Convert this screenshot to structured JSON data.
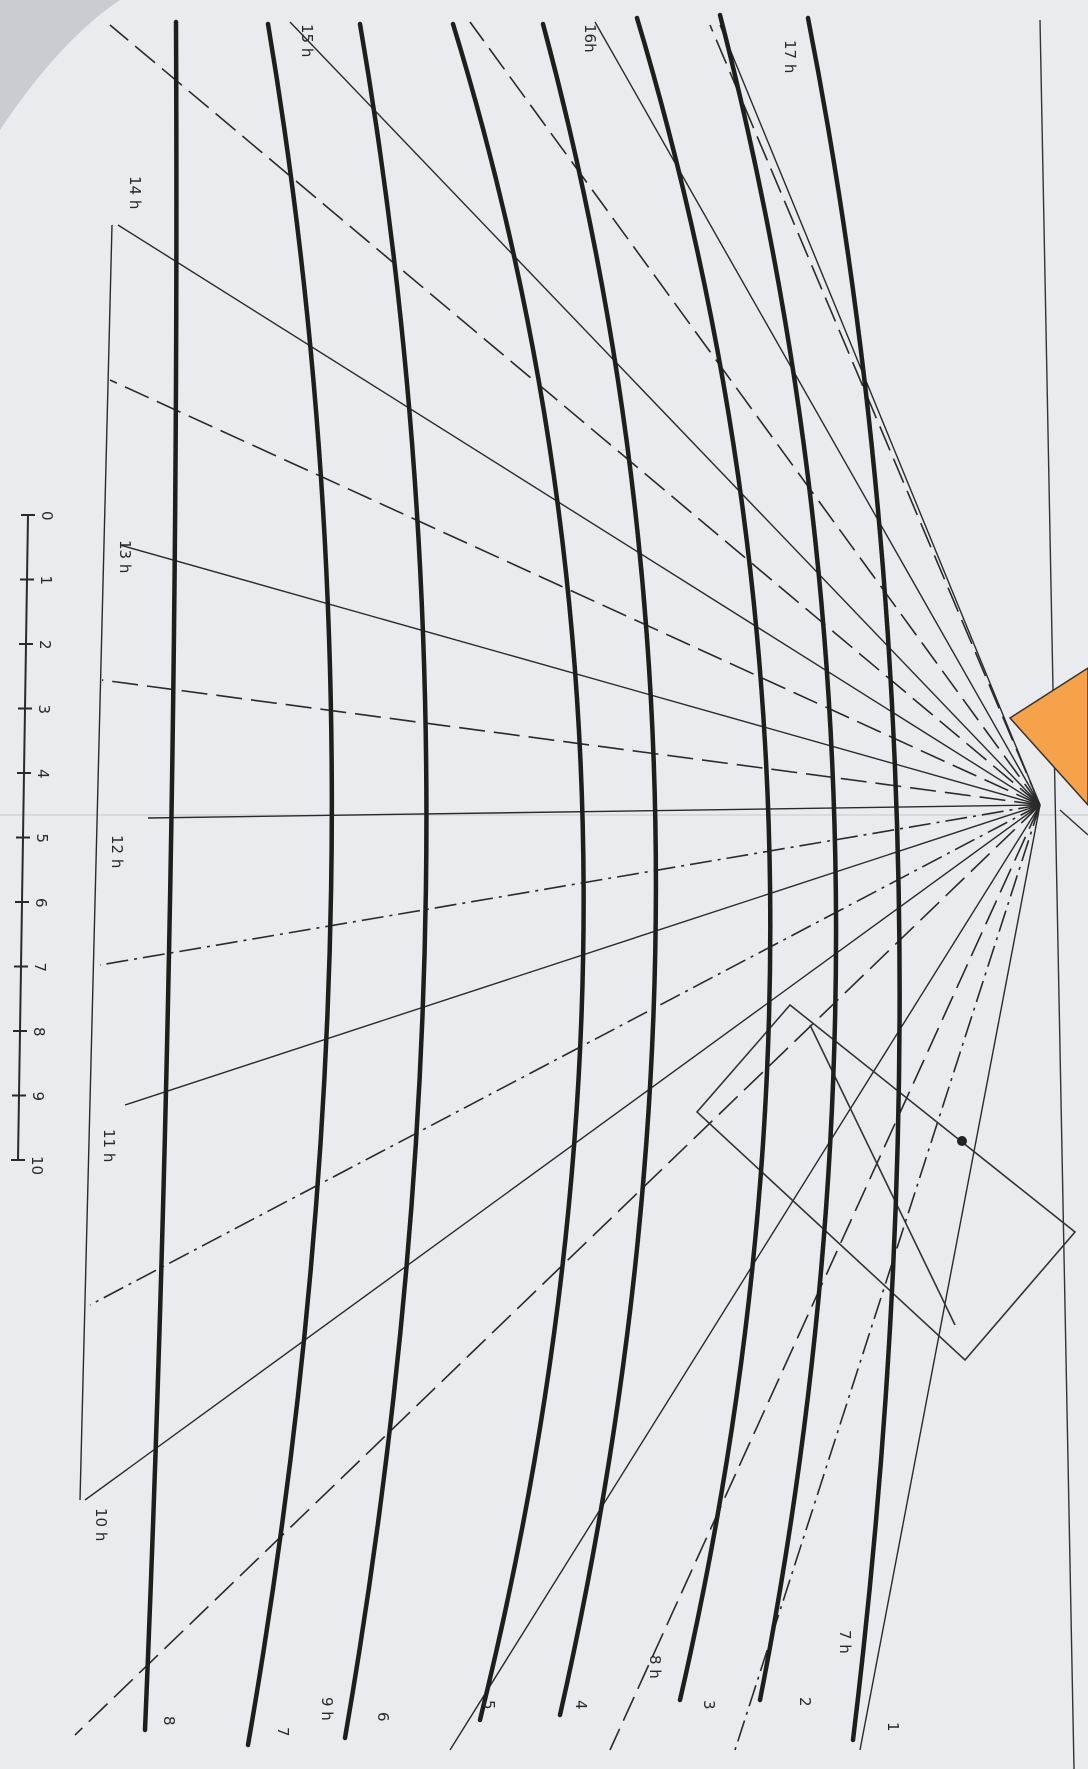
{
  "colors": {
    "paper": "#e9ebee",
    "ink": "#1e1e1e",
    "gnomon": "#f5a24a"
  },
  "hour_labels": {
    "h17": "17 h",
    "h16": "16h",
    "h15": "15 h",
    "h14": "14 h",
    "h13": "13 h",
    "h12": "12 h",
    "h11": "11 h",
    "h10": "10 h",
    "h9": "9 h",
    "h8": "8 h",
    "h7": "7 h"
  },
  "curve_labels": {
    "c1": "1",
    "c2": "2",
    "c3": "3",
    "c4": "4",
    "c5": "5",
    "c6": "6",
    "c7": "7",
    "c8": "8"
  },
  "scale": {
    "ticks": [
      "0",
      "1",
      "2",
      "3",
      "4",
      "5",
      "6",
      "7",
      "8",
      "9",
      "10"
    ]
  }
}
